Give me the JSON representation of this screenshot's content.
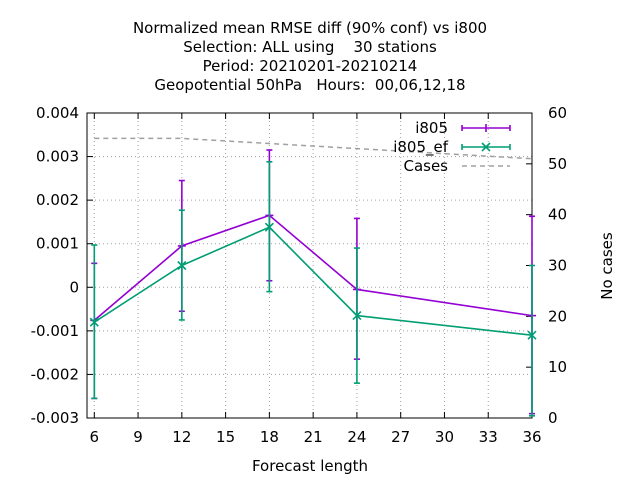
{
  "chart_data": {
    "type": "line",
    "title_lines": [
      "Normalized mean RMSE diff (90% conf) vs i800",
      "Selection: ALL using    30 stations",
      "Period: 20210201-20210214",
      "Geopotential 50hPa   Hours:  00,06,12,18"
    ],
    "xlabel": "Forecast length",
    "ylabel": "",
    "y2label": "No cases",
    "xlim": [
      5.5,
      36
    ],
    "ylim": [
      -0.003,
      0.004
    ],
    "y2lim": [
      0,
      60
    ],
    "xticks": [
      6,
      9,
      12,
      15,
      18,
      21,
      24,
      27,
      30,
      33,
      36
    ],
    "yticks": [
      -0.003,
      -0.002,
      -0.001,
      0,
      0.001,
      0.002,
      0.003,
      0.004
    ],
    "yticklabels": [
      "-0.003",
      "-0.002",
      "-0.001",
      "0",
      "0.001",
      "0.002",
      "0.003",
      "0.004"
    ],
    "y2ticks": [
      0,
      10,
      20,
      30,
      40,
      50,
      60
    ],
    "grid": true,
    "legend_position": "top-right",
    "series": [
      {
        "name": "i805",
        "color": "#9400d3",
        "marker": "plus",
        "axis": "y",
        "x": [
          6,
          12,
          18,
          24,
          36
        ],
        "y": [
          -0.00076,
          0.00095,
          0.00165,
          -5e-05,
          -0.00065
        ],
        "err_low": [
          -0.00255,
          -0.00055,
          0.00015,
          -0.00165,
          -0.0029
        ],
        "err_high": [
          0.00055,
          0.00245,
          0.00315,
          0.00158,
          0.00163
        ]
      },
      {
        "name": "i805_ef",
        "color": "#009e73",
        "marker": "cross",
        "axis": "y",
        "x": [
          6,
          12,
          18,
          24,
          36
        ],
        "y": [
          -0.0008,
          0.0005,
          0.00138,
          -0.00065,
          -0.0011
        ],
        "err_low": [
          -0.00255,
          -0.00075,
          -0.0001,
          -0.0022,
          -0.00295
        ],
        "err_high": [
          0.00097,
          0.00177,
          0.00288,
          0.0009,
          0.0005
        ]
      },
      {
        "name": "Cases",
        "color": "#a0a0a0",
        "marker": "none",
        "dashed": true,
        "axis": "y2",
        "x": [
          6,
          12,
          18,
          24,
          36
        ],
        "y": [
          55,
          55,
          54,
          53,
          51
        ]
      }
    ]
  }
}
